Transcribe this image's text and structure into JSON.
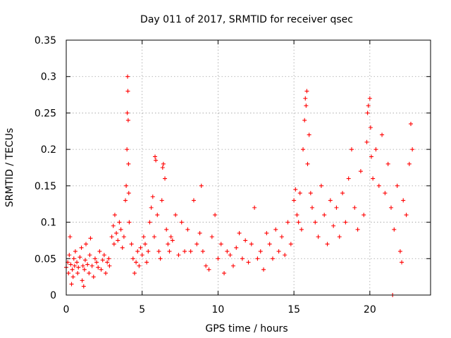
{
  "chart_data": {
    "type": "scatter",
    "title": "Day 011 of 2017, SRMTID for receiver qsec",
    "xlabel": "GPS time / hours",
    "ylabel": "SRMTID / TECUs",
    "xlim": [
      0,
      24
    ],
    "ylim": [
      0,
      0.35
    ],
    "x_ticks": [
      0,
      5,
      10,
      15,
      20
    ],
    "x_tick_labels": [
      "0",
      "5",
      "10",
      "15",
      "20"
    ],
    "y_ticks": [
      0,
      0.05,
      0.1,
      0.15,
      0.2,
      0.25,
      0.3,
      0.35
    ],
    "y_tick_labels": [
      "0",
      "0.05",
      "0.1",
      "0.15",
      "0.2",
      "0.25",
      "0.3",
      "0.35"
    ],
    "grid": true,
    "marker": "+",
    "color": "#ff0000",
    "series": [
      {
        "name": "SRMTID",
        "points": [
          [
            0.0,
            0.038
          ],
          [
            0.1,
            0.045
          ],
          [
            0.15,
            0.03
          ],
          [
            0.2,
            0.055
          ],
          [
            0.25,
            0.08
          ],
          [
            0.3,
            0.042
          ],
          [
            0.4,
            0.035
          ],
          [
            0.45,
            0.025
          ],
          [
            0.5,
            0.05
          ],
          [
            0.55,
            0.04
          ],
          [
            0.6,
            0.06
          ],
          [
            0.7,
            0.045
          ],
          [
            0.75,
            0.03
          ],
          [
            0.8,
            0.038
          ],
          [
            0.9,
            0.052
          ],
          [
            1.0,
            0.065
          ],
          [
            1.05,
            0.02
          ],
          [
            1.1,
            0.04
          ],
          [
            1.2,
            0.035
          ],
          [
            1.25,
            0.048
          ],
          [
            1.3,
            0.07
          ],
          [
            1.4,
            0.042
          ],
          [
            1.5,
            0.03
          ],
          [
            1.55,
            0.055
          ],
          [
            1.6,
            0.078
          ],
          [
            1.7,
            0.04
          ],
          [
            1.8,
            0.025
          ],
          [
            1.9,
            0.05
          ],
          [
            2.0,
            0.045
          ],
          [
            2.1,
            0.038
          ],
          [
            2.2,
            0.06
          ],
          [
            2.3,
            0.035
          ],
          [
            2.4,
            0.048
          ],
          [
            2.5,
            0.055
          ],
          [
            2.6,
            0.03
          ],
          [
            2.7,
            0.045
          ],
          [
            2.8,
            0.05
          ],
          [
            2.85,
            0.04
          ],
          [
            0.35,
            0.015
          ],
          [
            1.15,
            0.012
          ],
          [
            3.0,
            0.08
          ],
          [
            3.1,
            0.095
          ],
          [
            3.15,
            0.07
          ],
          [
            3.2,
            0.11
          ],
          [
            3.3,
            0.085
          ],
          [
            3.4,
            0.075
          ],
          [
            3.5,
            0.1
          ],
          [
            3.6,
            0.09
          ],
          [
            3.7,
            0.065
          ],
          [
            3.8,
            0.08
          ],
          [
            3.9,
            0.13
          ],
          [
            3.95,
            0.15
          ],
          [
            4.0,
            0.2
          ],
          [
            4.02,
            0.25
          ],
          [
            4.04,
            0.3
          ],
          [
            4.06,
            0.28
          ],
          [
            4.08,
            0.24
          ],
          [
            4.1,
            0.18
          ],
          [
            4.12,
            0.14
          ],
          [
            4.15,
            0.1
          ],
          [
            4.3,
            0.07
          ],
          [
            4.4,
            0.05
          ],
          [
            4.5,
            0.03
          ],
          [
            4.6,
            0.045
          ],
          [
            4.7,
            0.06
          ],
          [
            4.8,
            0.04
          ],
          [
            4.9,
            0.065
          ],
          [
            5.0,
            0.055
          ],
          [
            5.1,
            0.08
          ],
          [
            5.2,
            0.07
          ],
          [
            5.3,
            0.045
          ],
          [
            5.4,
            0.06
          ],
          [
            5.5,
            0.1
          ],
          [
            5.6,
            0.12
          ],
          [
            5.7,
            0.135
          ],
          [
            5.8,
            0.08
          ],
          [
            5.85,
            0.19
          ],
          [
            5.9,
            0.185
          ],
          [
            6.0,
            0.11
          ],
          [
            6.1,
            0.06
          ],
          [
            6.2,
            0.05
          ],
          [
            6.3,
            0.13
          ],
          [
            6.35,
            0.175
          ],
          [
            6.4,
            0.18
          ],
          [
            6.5,
            0.16
          ],
          [
            6.6,
            0.09
          ],
          [
            6.7,
            0.07
          ],
          [
            6.8,
            0.06
          ],
          [
            6.9,
            0.08
          ],
          [
            7.0,
            0.075
          ],
          [
            7.2,
            0.11
          ],
          [
            7.4,
            0.055
          ],
          [
            7.6,
            0.1
          ],
          [
            7.8,
            0.06
          ],
          [
            8.0,
            0.09
          ],
          [
            8.2,
            0.06
          ],
          [
            8.4,
            0.13
          ],
          [
            8.6,
            0.07
          ],
          [
            8.8,
            0.085
          ],
          [
            8.9,
            0.15
          ],
          [
            9.0,
            0.06
          ],
          [
            9.2,
            0.04
          ],
          [
            9.4,
            0.035
          ],
          [
            9.6,
            0.08
          ],
          [
            9.8,
            0.11
          ],
          [
            10.0,
            0.05
          ],
          [
            10.2,
            0.07
          ],
          [
            10.4,
            0.03
          ],
          [
            10.6,
            0.06
          ],
          [
            10.8,
            0.055
          ],
          [
            11.0,
            0.04
          ],
          [
            11.2,
            0.065
          ],
          [
            11.4,
            0.085
          ],
          [
            11.6,
            0.05
          ],
          [
            11.8,
            0.075
          ],
          [
            12.0,
            0.045
          ],
          [
            12.2,
            0.07
          ],
          [
            12.4,
            0.12
          ],
          [
            12.6,
            0.05
          ],
          [
            12.8,
            0.06
          ],
          [
            13.0,
            0.035
          ],
          [
            13.2,
            0.085
          ],
          [
            13.4,
            0.07
          ],
          [
            13.6,
            0.05
          ],
          [
            13.8,
            0.09
          ],
          [
            14.0,
            0.06
          ],
          [
            14.2,
            0.08
          ],
          [
            14.4,
            0.055
          ],
          [
            14.6,
            0.1
          ],
          [
            14.8,
            0.07
          ],
          [
            15.0,
            0.13
          ],
          [
            15.1,
            0.145
          ],
          [
            15.2,
            0.11
          ],
          [
            15.3,
            0.1
          ],
          [
            15.4,
            0.14
          ],
          [
            15.5,
            0.09
          ],
          [
            15.6,
            0.2
          ],
          [
            15.7,
            0.24
          ],
          [
            15.75,
            0.27
          ],
          [
            15.8,
            0.26
          ],
          [
            15.85,
            0.28
          ],
          [
            15.9,
            0.18
          ],
          [
            16.0,
            0.22
          ],
          [
            16.1,
            0.14
          ],
          [
            16.2,
            0.12
          ],
          [
            16.4,
            0.1
          ],
          [
            16.6,
            0.08
          ],
          [
            16.8,
            0.15
          ],
          [
            17.0,
            0.11
          ],
          [
            17.2,
            0.07
          ],
          [
            17.4,
            0.13
          ],
          [
            17.6,
            0.095
          ],
          [
            17.8,
            0.12
          ],
          [
            18.0,
            0.08
          ],
          [
            18.2,
            0.14
          ],
          [
            18.4,
            0.1
          ],
          [
            18.6,
            0.16
          ],
          [
            18.8,
            0.2
          ],
          [
            19.0,
            0.12
          ],
          [
            19.2,
            0.09
          ],
          [
            19.4,
            0.17
          ],
          [
            19.6,
            0.11
          ],
          [
            19.8,
            0.21
          ],
          [
            19.85,
            0.25
          ],
          [
            19.9,
            0.26
          ],
          [
            20.0,
            0.27
          ],
          [
            20.05,
            0.23
          ],
          [
            20.1,
            0.19
          ],
          [
            20.2,
            0.16
          ],
          [
            20.4,
            0.2
          ],
          [
            20.6,
            0.15
          ],
          [
            20.8,
            0.22
          ],
          [
            21.0,
            0.14
          ],
          [
            21.2,
            0.18
          ],
          [
            21.4,
            0.12
          ],
          [
            21.6,
            0.09
          ],
          [
            21.8,
            0.15
          ],
          [
            22.0,
            0.06
          ],
          [
            22.2,
            0.13
          ],
          [
            22.4,
            0.11
          ],
          [
            22.6,
            0.18
          ],
          [
            22.7,
            0.235
          ],
          [
            22.8,
            0.2
          ],
          [
            21.5,
            0.0
          ],
          [
            22.1,
            0.045
          ]
        ]
      }
    ]
  }
}
